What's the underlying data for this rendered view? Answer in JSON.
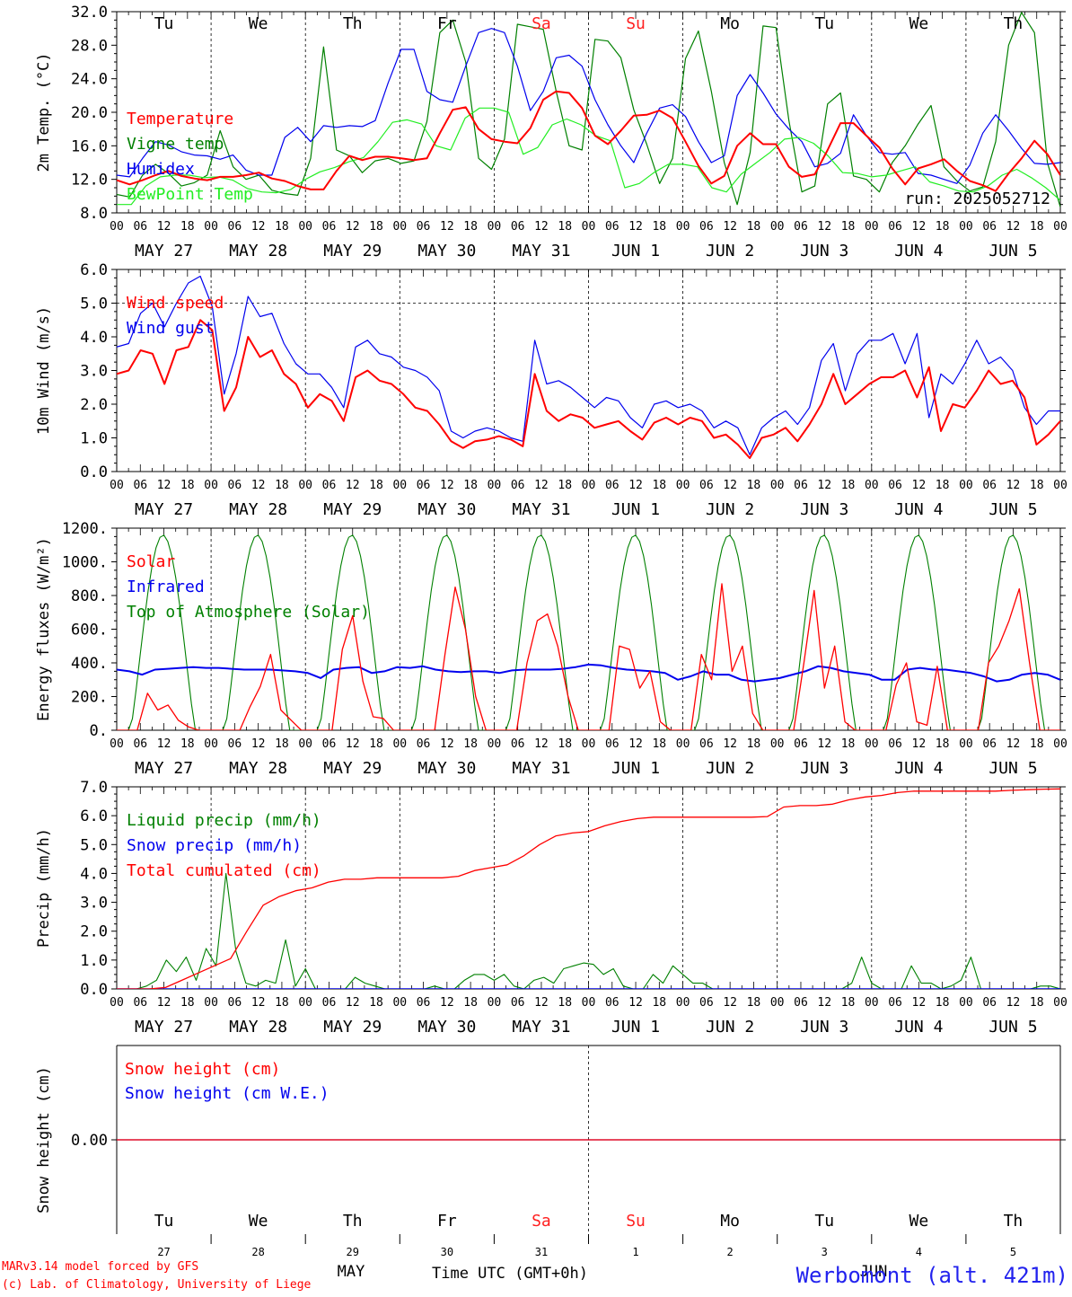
{
  "run_label": "run: 2025052712",
  "hour_ticks": [
    "00",
    "06",
    "12",
    "18"
  ],
  "end_tick": "00",
  "dates": [
    "MAY 27",
    "MAY 28",
    "MAY 29",
    "MAY 30",
    "MAY 31",
    "JUN  1",
    "JUN  2",
    "JUN  3",
    "JUN  4",
    "JUN  5"
  ],
  "weekdays": [
    "Tu",
    "We",
    "Th",
    "Fr",
    "Sa",
    "Su",
    "Mo",
    "Tu",
    "We",
    "Th"
  ],
  "weekend_color": "#ff2020",
  "weekend_index": [
    4,
    5
  ],
  "footer": {
    "day_numbers": [
      "27",
      "28",
      "29",
      "30",
      "31",
      "1",
      "2",
      "3",
      "4",
      "5"
    ],
    "month_may": "MAY",
    "month_jun": "JUN",
    "time_label": "Time UTC (GMT+0h)",
    "credit1": "MARv3.14 model forced by GFS",
    "credit2": "(c) Lab. of Climatology, University of Liege",
    "station": "Werbomont (alt. 421m)"
  },
  "chart_data": [
    {
      "type": "line",
      "ylabel": "2m Temp. (°C)",
      "ylim": [
        8,
        32
      ],
      "yticks": [
        "32.0",
        "28.0",
        "24.0",
        "20.0",
        "16.0",
        "12.0",
        "8.0"
      ],
      "x_units": "hours since 2025-05-27 00 UTC (3-hourly)",
      "series": [
        {
          "name": "Temperature",
          "color": "#ff0000",
          "width": 2,
          "values": [
            11.9,
            11.4,
            11.9,
            12.5,
            13,
            12.4,
            12.1,
            11.9,
            12.3,
            12.3,
            12.5,
            12.8,
            12.1,
            11.8,
            11.2,
            10.8,
            10.8,
            13,
            14.8,
            14.3,
            14.7,
            14.7,
            14.5,
            14.3,
            14.5,
            17.5,
            20.3,
            20.6,
            18,
            16.8,
            16.5,
            16.3,
            18.1,
            21.5,
            22.5,
            22.3,
            20.5,
            17.2,
            16.2,
            17.8,
            19.6,
            19.7,
            20.2,
            19.3,
            16.5,
            13.6,
            11.5,
            12.4,
            16,
            17.5,
            16.2,
            16.2,
            13.5,
            12.3,
            12.6,
            15.5,
            18.7,
            18.7,
            17.2,
            15.8,
            13.3,
            11.4,
            13.3,
            13.8,
            14.4,
            13,
            11.8,
            11.3,
            10.6,
            12.7,
            14.5,
            16.6,
            15,
            12.5
          ]
        },
        {
          "name": "Vigne temp",
          "color": "#008000",
          "width": 1.2,
          "values": [
            10.2,
            9.9,
            12.5,
            13.8,
            12.7,
            11.2,
            11.6,
            12.5,
            17.8,
            13.5,
            12,
            12.5,
            10.7,
            10.3,
            10.1,
            14.5,
            27.8,
            15.5,
            14.8,
            12.8,
            14.2,
            14.5,
            13.9,
            14.2,
            18.9,
            29.5,
            31,
            26,
            14.5,
            13.2,
            16.8,
            30.5,
            30.2,
            29.9,
            22.5,
            16,
            15.5,
            28.7,
            28.5,
            26.5,
            20.3,
            16.2,
            11.5,
            14.5,
            26.4,
            29.7,
            22.5,
            14,
            9,
            15.2,
            30.3,
            30.1,
            19,
            10.5,
            11.2,
            21,
            22.3,
            12.4,
            12,
            10.5,
            14,
            16,
            18.6,
            20.8,
            13.5,
            11.8,
            10.6,
            11.1,
            16.5,
            28,
            31.9,
            29.5,
            14,
            8.7
          ]
        },
        {
          "name": "Humidex",
          "color": "#0000ee",
          "width": 1.2,
          "values": [
            12.5,
            12.3,
            14.5,
            16.5,
            16.1,
            15.3,
            14.9,
            14.8,
            14.4,
            14.9,
            13.1,
            12.5,
            12.5,
            17,
            18.2,
            16.5,
            18.4,
            18.2,
            18.4,
            18.3,
            19,
            23.5,
            27.5,
            27.5,
            22.5,
            21.5,
            21.2,
            25.5,
            29.5,
            30,
            29.5,
            25.5,
            20.2,
            22.5,
            26.5,
            26.8,
            25.5,
            21.5,
            18.5,
            16,
            14,
            17.5,
            20.5,
            20.9,
            19.5,
            16.5,
            14,
            14.8,
            22,
            24.5,
            22.3,
            19.8,
            18,
            16.5,
            13.5,
            13.9,
            15.1,
            19.7,
            17.2,
            15.2,
            15,
            15.2,
            12.7,
            12.5,
            12,
            11.5,
            13.7,
            17.5,
            19.7,
            17.8,
            15.7,
            13.9,
            13.8,
            14
          ]
        },
        {
          "name": "BewPoint Temp",
          "color": "#22ee22",
          "width": 1.2,
          "values": [
            9,
            9,
            11.2,
            12.3,
            12.5,
            12.5,
            12.2,
            12.3,
            11.9,
            10.9,
            10.5,
            10.4,
            10.8,
            12,
            12.9,
            13.4,
            14.1,
            14.6,
            16.5,
            18.8,
            19.1,
            18.6,
            16,
            15.5,
            19.3,
            20.5,
            20.5,
            20,
            15,
            15.8,
            18.5,
            19.2,
            18.5,
            17.2,
            16.6,
            11,
            11.5,
            12.8,
            13.8,
            13.8,
            13.5,
            11,
            10.5,
            12.6,
            13.9,
            15.2,
            16.8,
            17,
            16.3,
            14.8,
            12.8,
            12.7,
            12.3,
            12.5,
            13,
            13.5,
            11.7,
            11.2,
            10.6,
            10.5,
            11.2,
            12.5,
            13.2,
            12.2,
            11,
            9.5
          ]
        }
      ],
      "series_x_step": [
        3,
        3,
        3,
        3
      ]
    },
    {
      "type": "line",
      "ylabel": "10m Wind (m/s)",
      "ylim": [
        0,
        6
      ],
      "yticks": [
        "6.0",
        "5.0",
        "4.0",
        "3.0",
        "2.0",
        "1.0",
        "0.0"
      ],
      "series": [
        {
          "name": "Wind speed",
          "color": "#ff0000",
          "width": 2,
          "values": [
            2.9,
            3,
            3.6,
            3.5,
            2.6,
            3.6,
            3.7,
            4.5,
            4.2,
            1.8,
            2.5,
            4,
            3.4,
            3.6,
            2.9,
            2.6,
            1.9,
            2.3,
            2.1,
            1.5,
            2.8,
            3,
            2.7,
            2.6,
            2.3,
            1.9,
            1.8,
            1.4,
            0.9,
            0.7,
            0.9,
            0.95,
            1.05,
            0.95,
            0.75,
            2.9,
            1.8,
            1.5,
            1.7,
            1.6,
            1.3,
            1.4,
            1.5,
            1.2,
            0.95,
            1.45,
            1.6,
            1.4,
            1.6,
            1.5,
            1.0,
            1.1,
            0.8,
            0.4,
            1.0,
            1.1,
            1.3,
            0.9,
            1.4,
            2,
            2.9,
            2.0,
            2.3,
            2.6,
            2.8,
            2.8,
            3,
            2.2,
            3.1,
            1.2,
            2,
            1.9,
            2.4,
            3,
            2.6,
            2.7,
            2.2,
            0.8,
            1.1,
            1.5
          ]
        },
        {
          "name": "Wind gust",
          "color": "#0000ee",
          "width": 1.2,
          "values": [
            3.7,
            3.8,
            4.7,
            5,
            4.3,
            5,
            5.6,
            5.8,
            4.9,
            2.3,
            3.5,
            5.2,
            4.6,
            4.7,
            3.8,
            3.2,
            2.9,
            2.9,
            2.5,
            1.9,
            3.7,
            3.9,
            3.5,
            3.4,
            3.1,
            3.0,
            2.8,
            2.4,
            1.2,
            1.0,
            1.2,
            1.3,
            1.2,
            1.0,
            0.9,
            3.9,
            2.6,
            2.7,
            2.5,
            2.2,
            1.9,
            2.2,
            2.1,
            1.6,
            1.3,
            2.0,
            2.1,
            1.9,
            2.0,
            1.8,
            1.3,
            1.5,
            1.3,
            0.5,
            1.3,
            1.6,
            1.8,
            1.4,
            1.9,
            3.3,
            3.8,
            2.4,
            3.5,
            3.9,
            3.9,
            4.1,
            3.2,
            4.1,
            1.6,
            2.9,
            2.6,
            3.2,
            3.9,
            3.2,
            3.4,
            3,
            1.9,
            1.4,
            1.8,
            1.8
          ]
        }
      ],
      "series_x_step": [
        3,
        3
      ]
    },
    {
      "type": "line",
      "ylabel": "Energy fluxes (W/m²)",
      "ylim": [
        0,
        1200
      ],
      "yticks": [
        "1200.",
        "1000.",
        "800.",
        "600.",
        "400.",
        "200.",
        "0."
      ],
      "series": [
        {
          "name": "Solar",
          "color": "#ff0000",
          "width": 1.3,
          "values": [
            0,
            0,
            0,
            220,
            120,
            150,
            60,
            20,
            0,
            0,
            0,
            0,
            0,
            140,
            260,
            450,
            120,
            60,
            0,
            0,
            0,
            0,
            480,
            680,
            290,
            80,
            70,
            0,
            0,
            0,
            0,
            0,
            450,
            850,
            600,
            200,
            0,
            0,
            0,
            0,
            400,
            650,
            690,
            500,
            200,
            0,
            0,
            0,
            0,
            500,
            480,
            250,
            350,
            50,
            0,
            0,
            0,
            450,
            300,
            870,
            350,
            500,
            100,
            0,
            0,
            0,
            0,
            400,
            830,
            250,
            500,
            50,
            0,
            0,
            0,
            0,
            270,
            400,
            50,
            30,
            380,
            0,
            0,
            0,
            0,
            400,
            500,
            650,
            840,
            400,
            0,
            0,
            0
          ]
        },
        {
          "name": "Infrared",
          "color": "#0000ee",
          "width": 2,
          "values": [
            360,
            350,
            330,
            360,
            365,
            370,
            375,
            370,
            370,
            365,
            360,
            360,
            360,
            355,
            350,
            340,
            310,
            360,
            370,
            375,
            340,
            350,
            375,
            370,
            380,
            360,
            350,
            345,
            350,
            350,
            340,
            355,
            360,
            360,
            360,
            365,
            375,
            390,
            385,
            370,
            360,
            355,
            350,
            340,
            300,
            320,
            350,
            330,
            330,
            300,
            290,
            300,
            310,
            330,
            350,
            380,
            370,
            350,
            340,
            330,
            300,
            300,
            360,
            370,
            360,
            360,
            350,
            340,
            320,
            290,
            300,
            330,
            340,
            330,
            300
          ]
        }
      ],
      "series_x_step": [
        2.5,
        3.2
      ]
    },
    {
      "type": "line",
      "ylabel": "Precip (mm/h)",
      "ylim": [
        0,
        7
      ],
      "yticks": [
        "7.0",
        "6.0",
        "5.0",
        "4.0",
        "3.0",
        "2.0",
        "1.0",
        "0.0"
      ],
      "series": [
        {
          "name": "Liquid precip (mm/h)",
          "color": "#008000",
          "width": 1.1
        },
        {
          "name": "Snow precip (mm/h)",
          "color": "#0000ee",
          "width": 1.1
        },
        {
          "name": "Total cumulated (cm)",
          "color": "#ff0000",
          "width": 1.3
        }
      ]
    },
    {
      "type": "line",
      "ylabel": "Snow height (cm)",
      "ylim": [
        -1,
        1
      ],
      "yticks": [
        "0.00"
      ],
      "series": [
        {
          "name": "Snow height (cm)",
          "color": "#ff0000",
          "width": 1.3,
          "values": [
            0,
            0
          ]
        },
        {
          "name": "Snow height (cm W.E.)",
          "color": "#0000ee",
          "width": 1.3,
          "values": [
            0,
            0
          ]
        }
      ]
    }
  ],
  "precip_liquid_values": [
    0,
    0,
    0,
    0.1,
    0.3,
    1.0,
    0.6,
    1.1,
    0.3,
    1.4,
    0.8,
    4.0,
    1.3,
    0.2,
    0.1,
    0.3,
    0.2,
    1.7,
    0.1,
    0.7,
    0,
    0,
    0,
    0,
    0.4,
    0.2,
    0.1,
    0,
    0,
    0,
    0,
    0,
    0.1,
    0,
    0,
    0.3,
    0.5,
    0.5,
    0.3,
    0.5,
    0.1,
    0,
    0.3,
    0.4,
    0.2,
    0.7,
    0.8,
    0.9,
    0.85,
    0.5,
    0.7,
    0.1,
    0,
    0,
    0.5,
    0.2,
    0.8,
    0.5,
    0.2,
    0.2,
    0,
    0,
    0,
    0,
    0,
    0,
    0,
    0,
    0,
    0,
    0,
    0,
    0,
    0,
    0.2,
    1.1,
    0.2,
    0,
    0,
    0,
    0.8,
    0.2,
    0.2,
    0,
    0.1,
    0.3,
    1.1,
    0,
    0,
    0,
    0,
    0,
    0,
    0.1,
    0.1,
    0
  ],
  "precip_total_values": [
    0,
    0,
    0,
    0.05,
    0.3,
    0.55,
    0.8,
    1.05,
    2.0,
    2.9,
    3.2,
    3.4,
    3.5,
    3.7,
    3.8,
    3.8,
    3.85,
    3.85,
    3.85,
    3.85,
    3.85,
    3.9,
    4.1,
    4.2,
    4.3,
    4.6,
    5.0,
    5.3,
    5.4,
    5.45,
    5.65,
    5.8,
    5.9,
    5.95,
    5.95,
    5.95,
    5.95,
    5.95,
    5.95,
    5.95,
    5.97,
    6.3,
    6.35,
    6.35,
    6.4,
    6.55,
    6.65,
    6.7,
    6.8,
    6.85,
    6.85,
    6.85,
    6.85,
    6.85,
    6.85,
    6.88,
    6.9,
    6.92,
    6.93
  ]
}
